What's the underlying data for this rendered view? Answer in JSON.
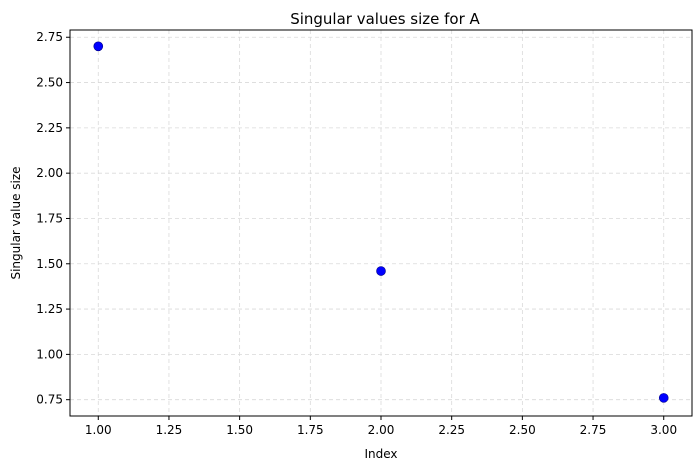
{
  "chart_data": {
    "type": "scatter",
    "title": "Singular values size for A",
    "xlabel": "Index",
    "ylabel": "Singular value size",
    "xlim": [
      0.9,
      3.1
    ],
    "ylim": [
      0.66,
      2.79
    ],
    "xticks": [
      "1.00",
      "1.25",
      "1.50",
      "1.75",
      "2.00",
      "2.25",
      "2.50",
      "2.75",
      "3.00"
    ],
    "yticks": [
      "0.75",
      "1.00",
      "1.25",
      "1.50",
      "1.75",
      "2.00",
      "2.25",
      "2.50",
      "2.75"
    ],
    "grid": true,
    "grid_style": "dashed",
    "marker_color": "#0000ff",
    "series": [
      {
        "x": [
          1,
          2,
          3
        ],
        "y": [
          2.7,
          1.46,
          0.76
        ]
      }
    ]
  }
}
